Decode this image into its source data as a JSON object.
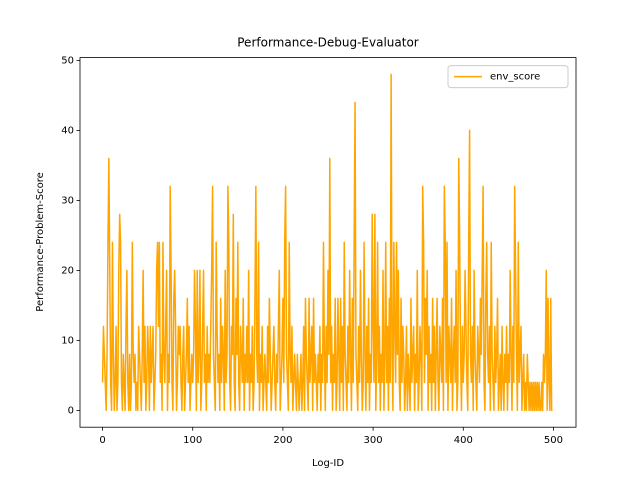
{
  "chart_data": {
    "type": "line",
    "title": "Performance-Debug-Evaluator",
    "xlabel": "Log-ID",
    "ylabel": "Performance-Problem-Score",
    "x": [
      0,
      1,
      2,
      3,
      4,
      5,
      6,
      7,
      8,
      9,
      10,
      11,
      12,
      13,
      14,
      15,
      16,
      17,
      18,
      19,
      20,
      21,
      22,
      23,
      24,
      25,
      26,
      27,
      28,
      29,
      30,
      31,
      32,
      33,
      34,
      35,
      36,
      37,
      38,
      39,
      40,
      41,
      42,
      43,
      44,
      45,
      46,
      47,
      48,
      49,
      50,
      51,
      52,
      53,
      54,
      55,
      56,
      57,
      58,
      59,
      60,
      61,
      62,
      63,
      64,
      65,
      66,
      67,
      68,
      69,
      70,
      71,
      72,
      73,
      74,
      75,
      76,
      77,
      78,
      79,
      80,
      81,
      82,
      83,
      84,
      85,
      86,
      87,
      88,
      89,
      90,
      91,
      92,
      93,
      94,
      95,
      96,
      97,
      98,
      99,
      100,
      101,
      102,
      103,
      104,
      105,
      106,
      107,
      108,
      109,
      110,
      111,
      112,
      113,
      114,
      115,
      116,
      117,
      118,
      119,
      120,
      121,
      122,
      123,
      124,
      125,
      126,
      127,
      128,
      129,
      130,
      131,
      132,
      133,
      134,
      135,
      136,
      137,
      138,
      139,
      140,
      141,
      142,
      143,
      144,
      145,
      146,
      147,
      148,
      149,
      150,
      151,
      152,
      153,
      154,
      155,
      156,
      157,
      158,
      159,
      160,
      161,
      162,
      163,
      164,
      165,
      166,
      167,
      168,
      169,
      170,
      171,
      172,
      173,
      174,
      175,
      176,
      177,
      178,
      179,
      180,
      181,
      182,
      183,
      184,
      185,
      186,
      187,
      188,
      189,
      190,
      191,
      192,
      193,
      194,
      195,
      196,
      197,
      198,
      199,
      200,
      201,
      202,
      203,
      204,
      205,
      206,
      207,
      208,
      209,
      210,
      211,
      212,
      213,
      214,
      215,
      216,
      217,
      218,
      219,
      220,
      221,
      222,
      223,
      224,
      225,
      226,
      227,
      228,
      229,
      230,
      231,
      232,
      233,
      234,
      235,
      236,
      237,
      238,
      239,
      240,
      241,
      242,
      243,
      244,
      245,
      246,
      247,
      248,
      249,
      250,
      251,
      252,
      253,
      254,
      255,
      256,
      257,
      258,
      259,
      260,
      261,
      262,
      263,
      264,
      265,
      266,
      267,
      268,
      269,
      270,
      271,
      272,
      273,
      274,
      275,
      276,
      277,
      278,
      279,
      280,
      281,
      282,
      283,
      284,
      285,
      286,
      287,
      288,
      289,
      290,
      291,
      292,
      293,
      294,
      295,
      296,
      297,
      298,
      299,
      300,
      301,
      302,
      303,
      304,
      305,
      306,
      307,
      308,
      309,
      310,
      311,
      312,
      313,
      314,
      315,
      316,
      317,
      318,
      319,
      320,
      321,
      322,
      323,
      324,
      325,
      326,
      327,
      328,
      329,
      330,
      331,
      332,
      333,
      334,
      335,
      336,
      337,
      338,
      339,
      340,
      341,
      342,
      343,
      344,
      345,
      346,
      347,
      348,
      349,
      350,
      351,
      352,
      353,
      354,
      355,
      356,
      357,
      358,
      359,
      360,
      361,
      362,
      363,
      364,
      365,
      366,
      367,
      368,
      369,
      370,
      371,
      372,
      373,
      374,
      375,
      376,
      377,
      378,
      379,
      380,
      381,
      382,
      383,
      384,
      385,
      386,
      387,
      388,
      389,
      390,
      391,
      392,
      393,
      394,
      395,
      396,
      397,
      398,
      399,
      400,
      401,
      402,
      403,
      404,
      405,
      406,
      407,
      408,
      409,
      410,
      411,
      412,
      413,
      414,
      415,
      416,
      417,
      418,
      419,
      420,
      421,
      422,
      423,
      424,
      425,
      426,
      427,
      428,
      429,
      430,
      431,
      432,
      433,
      434,
      435,
      436,
      437,
      438,
      439,
      440,
      441,
      442,
      443,
      444,
      445,
      446,
      447,
      448,
      449,
      450,
      451,
      452,
      453,
      454,
      455,
      456,
      457,
      458,
      459,
      460,
      461,
      462,
      463,
      464,
      465,
      466,
      467,
      468,
      469,
      470,
      471,
      472,
      473,
      474,
      475,
      476,
      477,
      478,
      479,
      480,
      481,
      482,
      483,
      484,
      485,
      486,
      487,
      488,
      489,
      490,
      491,
      492,
      493,
      494,
      495,
      496,
      497,
      498,
      499
    ],
    "series": [
      {
        "name": "env_score",
        "color": "#ffa500",
        "values": [
          4,
          12,
          8,
          4,
          0,
          8,
          24,
          36,
          20,
          4,
          0,
          24,
          8,
          0,
          4,
          12,
          0,
          4,
          20,
          28,
          24,
          4,
          0,
          8,
          4,
          0,
          12,
          20,
          4,
          0,
          8,
          0,
          4,
          24,
          8,
          4,
          8,
          0,
          4,
          0,
          12,
          8,
          4,
          0,
          8,
          20,
          4,
          12,
          0,
          4,
          12,
          8,
          0,
          12,
          4,
          8,
          12,
          0,
          4,
          8,
          20,
          24,
          12,
          24,
          4,
          8,
          0,
          24,
          8,
          4,
          12,
          20,
          0,
          8,
          4,
          32,
          20,
          4,
          0,
          16,
          20,
          12,
          0,
          4,
          12,
          8,
          12,
          4,
          0,
          8,
          12,
          0,
          4,
          8,
          16,
          4,
          12,
          0,
          4,
          8,
          4,
          8,
          20,
          12,
          0,
          20,
          4,
          8,
          20,
          0,
          4,
          12,
          20,
          4,
          8,
          0,
          12,
          4,
          8,
          4,
          12,
          20,
          32,
          8,
          4,
          0,
          24,
          12,
          4,
          8,
          0,
          16,
          4,
          12,
          8,
          0,
          20,
          4,
          8,
          32,
          24,
          4,
          0,
          12,
          8,
          28,
          4,
          0,
          16,
          8,
          24,
          4,
          0,
          12,
          8,
          4,
          16,
          0,
          8,
          4,
          12,
          4,
          20,
          0,
          8,
          4,
          12,
          0,
          4,
          16,
          32,
          8,
          4,
          24,
          0,
          8,
          4,
          12,
          0,
          4,
          8,
          4,
          0,
          12,
          4,
          16,
          8,
          0,
          4,
          8,
          12,
          4,
          0,
          8,
          4,
          12,
          20,
          0,
          4,
          8,
          16,
          4,
          24,
          32,
          8,
          4,
          0,
          24,
          8,
          4,
          12,
          0,
          4,
          8,
          4,
          0,
          8,
          4,
          0,
          4,
          8,
          0,
          4,
          12,
          0,
          16,
          8,
          4,
          0,
          16,
          4,
          8,
          12,
          0,
          16,
          4,
          8,
          4,
          0,
          8,
          4,
          12,
          0,
          8,
          4,
          24,
          8,
          0,
          12,
          4,
          20,
          8,
          36,
          4,
          12,
          0,
          8,
          4,
          16,
          0,
          4,
          16,
          8,
          0,
          16,
          4,
          12,
          0,
          24,
          8,
          4,
          0,
          12,
          4,
          20,
          8,
          0,
          16,
          4,
          24,
          44,
          8,
          4,
          0,
          12,
          4,
          20,
          8,
          0,
          4,
          24,
          8,
          0,
          12,
          4,
          16,
          0,
          8,
          4,
          28,
          12,
          4,
          28,
          0,
          8,
          24,
          4,
          12,
          0,
          8,
          4,
          20,
          0,
          8,
          24,
          4,
          12,
          0,
          16,
          4,
          48,
          8,
          0,
          24,
          12,
          4,
          24,
          8,
          20,
          4,
          0,
          16,
          4,
          12,
          8,
          0,
          4,
          12,
          0,
          8,
          4,
          0,
          16,
          4,
          8,
          12,
          0,
          8,
          4,
          20,
          0,
          4,
          12,
          8,
          0,
          32,
          24,
          4,
          16,
          8,
          20,
          0,
          12,
          4,
          8,
          0,
          16,
          4,
          12,
          0,
          8,
          16,
          4,
          0,
          12,
          8,
          4,
          16,
          0,
          32,
          24,
          4,
          24,
          0,
          12,
          8,
          4,
          16,
          0,
          8,
          12,
          4,
          20,
          0,
          4,
          36,
          24,
          8,
          0,
          12,
          4,
          8,
          20,
          12,
          4,
          0,
          24,
          40,
          8,
          4,
          12,
          0,
          20,
          8,
          4,
          0,
          12,
          8,
          4,
          16,
          8,
          20,
          32,
          4,
          0,
          16,
          24,
          8,
          4,
          12,
          0,
          24,
          8,
          4,
          0,
          12,
          4,
          8,
          16,
          0,
          4,
          8,
          0,
          12,
          4,
          0,
          8,
          4,
          12,
          0,
          8,
          4,
          20,
          8,
          0,
          12,
          4,
          32,
          20,
          8,
          0,
          24,
          4,
          8,
          12,
          0,
          4,
          8,
          0,
          4,
          0,
          8,
          4,
          0,
          4,
          0,
          4,
          0,
          4,
          0,
          4,
          0,
          4,
          0,
          4,
          0,
          0,
          4,
          0,
          8,
          4,
          8,
          20,
          0,
          16,
          4,
          0,
          16,
          0,
          0
        ]
      }
    ],
    "xlim": [
      -25,
      525
    ],
    "xticks": [
      0,
      100,
      200,
      300,
      400,
      500
    ],
    "ylim": [
      -2.4,
      50.4
    ],
    "yticks": [
      0,
      10,
      20,
      30,
      40,
      50
    ],
    "legend": "upper right"
  }
}
